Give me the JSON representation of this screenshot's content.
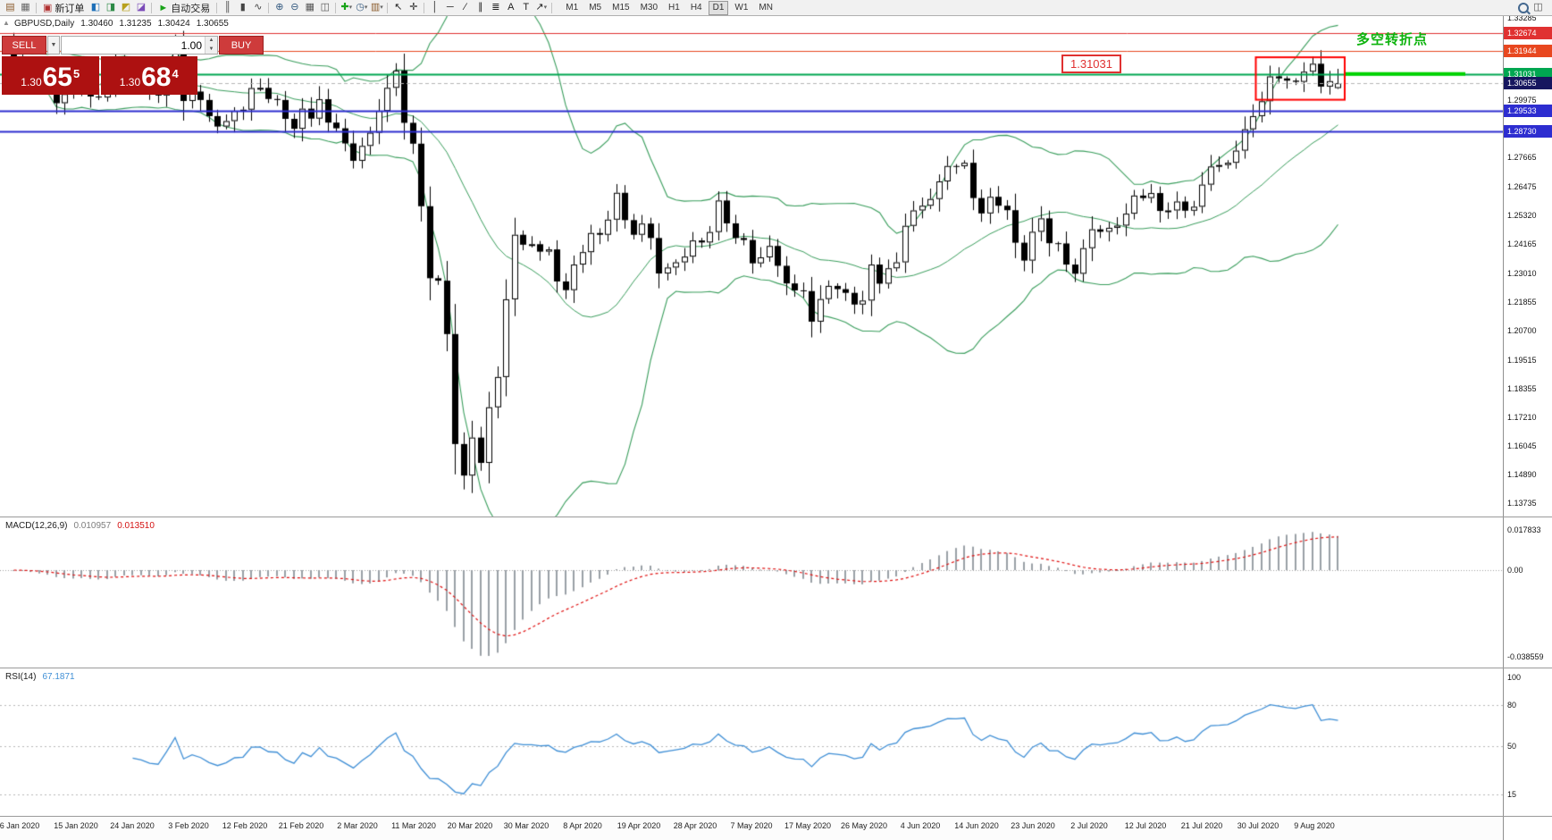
{
  "toolbar": {
    "left_items": [
      {
        "name": "new-chart-icon",
        "glyph": "▤",
        "color": "#8a5a2a"
      },
      {
        "name": "profiles-icon",
        "glyph": "▦",
        "color": "#666666"
      },
      {
        "name": "sep"
      },
      {
        "name": "new-order-button",
        "glyph": "▣",
        "color": "#b03030",
        "label": "新订单"
      },
      {
        "name": "market-watch-icon",
        "glyph": "◧",
        "color": "#1d6fb8"
      },
      {
        "name": "data-window-icon",
        "glyph": "◨",
        "color": "#2d8a46"
      },
      {
        "name": "navigator-icon",
        "glyph": "◩",
        "color": "#b8a11d"
      },
      {
        "name": "terminal-icon",
        "glyph": "◪",
        "color": "#7a4ab8"
      },
      {
        "name": "sep"
      },
      {
        "name": "autotrading-button",
        "glyph": "►",
        "color": "#19a319",
        "label": "自动交易"
      },
      {
        "name": "sep"
      },
      {
        "name": "bars-chart-icon",
        "glyph": "║",
        "color": "#444444"
      },
      {
        "name": "candlestick-chart-icon",
        "glyph": "▮",
        "color": "#444444"
      },
      {
        "name": "line-chart-icon",
        "glyph": "∿",
        "color": "#444444"
      },
      {
        "name": "sep"
      },
      {
        "name": "zoom-in-icon",
        "glyph": "⊕",
        "color": "#33597f"
      },
      {
        "name": "zoom-out-icon",
        "glyph": "⊖",
        "color": "#33597f"
      },
      {
        "name": "tile-windows-icon",
        "glyph": "▦",
        "color": "#555555"
      },
      {
        "name": "cascade-windows-icon",
        "glyph": "◫",
        "color": "#555555"
      },
      {
        "name": "sep"
      },
      {
        "name": "indicators-add-icon",
        "glyph": "✚",
        "color": "#19a319",
        "caret": true
      },
      {
        "name": "periods-icon",
        "glyph": "◷",
        "color": "#33597f",
        "caret": true
      },
      {
        "name": "templates-icon",
        "glyph": "▥",
        "color": "#8a5a2a",
        "caret": true
      },
      {
        "name": "sep"
      },
      {
        "name": "cursor-icon",
        "glyph": "↖",
        "color": "#222222"
      },
      {
        "name": "crosshair-icon",
        "glyph": "✛",
        "color": "#222222"
      },
      {
        "name": "sep"
      },
      {
        "name": "vertical-line-icon",
        "glyph": "│",
        "color": "#222222"
      },
      {
        "name": "horizontal-line-icon",
        "glyph": "─",
        "color": "#222222"
      },
      {
        "name": "trendline-icon",
        "glyph": "∕",
        "color": "#222222"
      },
      {
        "name": "equidistant-channel-icon",
        "glyph": "∥",
        "color": "#222222"
      },
      {
        "name": "fibonacci-icon",
        "glyph": "≣",
        "color": "#222222"
      },
      {
        "name": "text-icon",
        "glyph": "A",
        "color": "#222222"
      },
      {
        "name": "label-icon",
        "glyph": "T",
        "color": "#222222"
      },
      {
        "name": "shapes-icon",
        "glyph": "↗",
        "color": "#222222",
        "caret": true
      },
      {
        "name": "sep"
      }
    ],
    "timeframes": [
      "M1",
      "M5",
      "M15",
      "M30",
      "H1",
      "H4",
      "D1",
      "W1",
      "MN"
    ],
    "active_timeframe": "D1",
    "right_items": [
      {
        "name": "search-icon"
      },
      {
        "name": "chart-shift-icon",
        "glyph": "◫",
        "color": "#555555"
      }
    ]
  },
  "trade_panel": {
    "sell_label": "SELL",
    "buy_label": "BUY",
    "volume": "1.00",
    "bid": {
      "big_figure": "1.30",
      "pips": "65",
      "pipette": "5"
    },
    "ask": {
      "big_figure": "1.30",
      "pips": "68",
      "pipette": "4"
    }
  },
  "chart_header": {
    "symbol_period": "GBPUSD,Daily",
    "open": "1.30460",
    "high": "1.31235",
    "low": "1.30424",
    "close": "1.30655"
  },
  "annotations": {
    "turning_point_label": "多空转折点",
    "price_label": "1.31031"
  },
  "indicators": {
    "macd_label": "MACD(12,26,9)",
    "macd_value": "0.010957",
    "macd_signal": "0.013510",
    "macd_axis": [
      "0.017833",
      "0.00",
      "-0.038559"
    ],
    "rsi_label": "RSI(14)",
    "rsi_value": "67.1871",
    "rsi_axis": [
      "100",
      "80",
      "50",
      "15"
    ]
  },
  "price_axis": {
    "labels": [
      "1.33285",
      "1.29975",
      "1.27665",
      "1.26475",
      "1.25320",
      "1.24165",
      "1.23010",
      "1.21855",
      "1.20700",
      "1.19515",
      "1.18355",
      "1.17210",
      "1.16045",
      "1.14890",
      "1.13735"
    ]
  },
  "date_axis": {
    "labels": [
      "6 Jan 2020",
      "15 Jan 2020",
      "24 Jan 2020",
      "3 Feb 2020",
      "12 Feb 2020",
      "21 Feb 2020",
      "2 Mar 2020",
      "11 Mar 2020",
      "20 Mar 2020",
      "30 Mar 2020",
      "8 Apr 2020",
      "19 Apr 2020",
      "28 Apr 2020",
      "7 May 2020",
      "17 May 2020",
      "26 May 2020",
      "4 Jun 2020",
      "14 Jun 2020",
      "23 Jun 2020",
      "2 Jul 2020",
      "12 Jul 2020",
      "21 Jul 2020",
      "30 Jul 2020",
      "9 Aug 2020"
    ]
  },
  "chart_data": {
    "type": "candlestick",
    "symbol": "GBPUSD",
    "period": "Daily",
    "last_candle": {
      "open": 1.3046,
      "high": 1.31235,
      "low": 1.30424,
      "close": 1.30655
    },
    "closes": [
      1.3166,
      1.3124,
      1.3103,
      1.3066,
      1.3061,
      1.2985,
      1.3022,
      1.3039,
      1.3074,
      1.3012,
      1.3008,
      1.3047,
      1.3141,
      1.3114,
      1.3073,
      1.3057,
      1.3025,
      1.3016,
      1.3092,
      1.3206,
      1.2994,
      1.3032,
      1.2998,
      1.2933,
      1.2891,
      1.2913,
      1.2954,
      1.2959,
      1.3046,
      1.3047,
      1.3002,
      1.2998,
      1.2922,
      1.2882,
      1.2963,
      1.2923,
      1.3001,
      1.2907,
      1.2884,
      1.2823,
      1.2753,
      1.2813,
      1.2866,
      1.2954,
      1.3047,
      1.3116,
      1.2906,
      1.2822,
      1.257,
      1.228,
      1.227,
      1.2055,
      1.1612,
      1.1485,
      1.1638,
      1.1536,
      1.176,
      1.1882,
      1.2195,
      1.2455,
      1.2415,
      1.2417,
      1.2387,
      1.2396,
      1.2267,
      1.2232,
      1.2335,
      1.2385,
      1.2462,
      1.2455,
      1.2516,
      1.2624,
      1.2514,
      1.2455,
      1.25,
      1.2442,
      1.2299,
      1.2323,
      1.2344,
      1.2367,
      1.2432,
      1.2424,
      1.2466,
      1.2593,
      1.2501,
      1.2442,
      1.2434,
      1.234,
      1.2364,
      1.241,
      1.233,
      1.2259,
      1.2231,
      1.2228,
      1.2105,
      1.2196,
      1.2249,
      1.2236,
      1.2221,
      1.2174,
      1.219,
      1.2335,
      1.2258,
      1.232,
      1.2344,
      1.2491,
      1.2553,
      1.2572,
      1.2599,
      1.267,
      1.2732,
      1.2731,
      1.2745,
      1.2603,
      1.2541,
      1.2608,
      1.2572,
      1.2554,
      1.2423,
      1.2351,
      1.2467,
      1.2521,
      1.2421,
      1.242,
      1.2335,
      1.2298,
      1.2401,
      1.2477,
      1.2467,
      1.2483,
      1.2492,
      1.254,
      1.2613,
      1.2603,
      1.2623,
      1.2551,
      1.2553,
      1.2589,
      1.2552,
      1.2568,
      1.2657,
      1.273,
      1.2736,
      1.2745,
      1.2794,
      1.288,
      1.2933,
      1.2993,
      1.3093,
      1.3085,
      1.3076,
      1.3071,
      1.3112,
      1.3144,
      1.3052,
      1.3074,
      1.30655
    ],
    "levels": [
      {
        "price": 1.32674,
        "label": "1.32674",
        "color": "#e03131",
        "style": "solid",
        "width": 1,
        "badge_bg": "#e03131"
      },
      {
        "price": 1.31944,
        "label": "1.31944",
        "color": "#e8471f",
        "style": "solid",
        "width": 1,
        "badge_bg": "#e8471f"
      },
      {
        "price": 1.31031,
        "label": "1.31031",
        "color": "#00a651",
        "style": "solid",
        "width": 2,
        "badge_bg": "#00a651"
      },
      {
        "price": 1.30655,
        "label": "1.30655",
        "color": "#b5b5b5",
        "style": "dash",
        "width": 1,
        "badge_bg": "#16165f"
      },
      {
        "price": 1.29533,
        "label": "1.29533",
        "color": "#2d2dd0",
        "style": "solid",
        "width": 2,
        "badge_bg": "#2d2dd0"
      },
      {
        "price": 1.2873,
        "label": "1.28730",
        "color": "#2d2dd0",
        "style": "solid",
        "width": 2,
        "badge_bg": "#2d2dd0"
      }
    ],
    "bollinger": {
      "period": 20,
      "deviations": 2,
      "color": "#3a9e5d"
    },
    "macd": {
      "fast": 12,
      "slow": 26,
      "signal": 9,
      "histogram_color": "#9aa0a6",
      "signal_color": "#e01010"
    },
    "rsi": {
      "period": 14,
      "color": "#3f8fd6",
      "levels": [
        80,
        50,
        15
      ]
    },
    "highlight_box": {
      "start_index": 147,
      "end_index": 156,
      "top_price": 1.317,
      "bottom_price": 1.2999,
      "color": "#ff0000"
    },
    "trend_segment": {
      "price": 1.31031,
      "color": "#00d300"
    },
    "candle_colors": {
      "bull_fill": "#ffffff",
      "bear_fill": "#000000",
      "outline": "#000000"
    }
  }
}
